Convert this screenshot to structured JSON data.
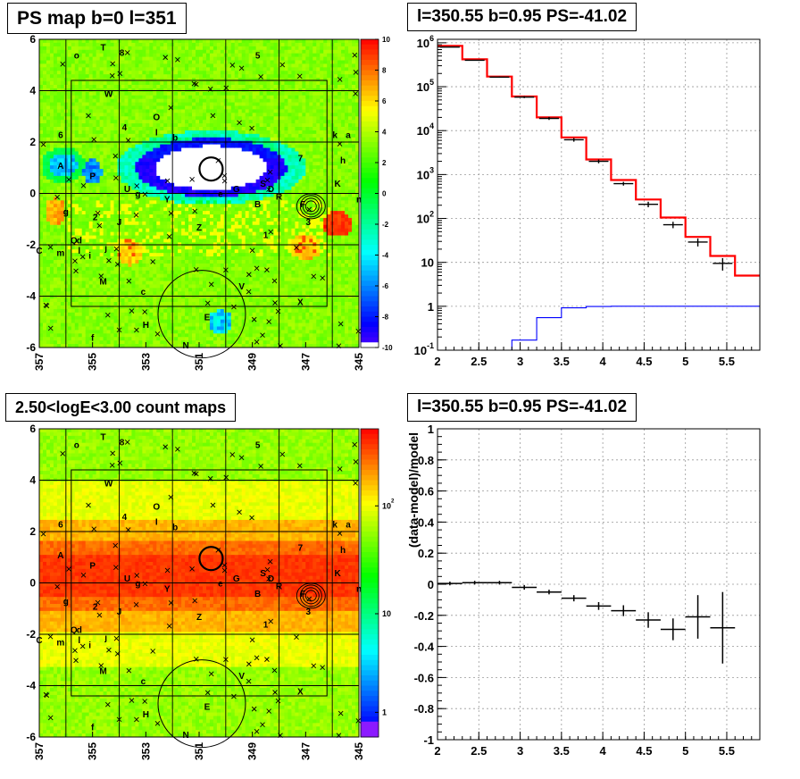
{
  "chart_data": [
    {
      "type": "heatmap",
      "title": "PS map b=0 l=351",
      "x_ticks": [
        "357",
        "355",
        "353",
        "351",
        "349",
        "347",
        "345"
      ],
      "y_ticks": [
        "6",
        "4",
        "2",
        "0",
        "-2",
        "-4",
        "-6"
      ],
      "xlim": [
        357,
        345
      ],
      "ylim": [
        -6,
        6
      ],
      "z_ticks": [
        "10",
        "8",
        "6",
        "4",
        "2",
        "0",
        "-2",
        "-4",
        "-6",
        "-8",
        "-10"
      ],
      "zlim": [
        -10,
        10
      ],
      "labels": [
        {
          "t": "o",
          "l": 355.6,
          "b": 5.4
        },
        {
          "t": "T",
          "l": 354.6,
          "b": 5.7
        },
        {
          "t": "8",
          "l": 353.9,
          "b": 5.5
        },
        {
          "t": "5",
          "l": 348.8,
          "b": 5.4
        },
        {
          "t": "W",
          "l": 354.4,
          "b": 3.9
        },
        {
          "t": "O",
          "l": 352.6,
          "b": 3.0
        },
        {
          "t": "4",
          "l": 353.8,
          "b": 2.6
        },
        {
          "t": "I",
          "l": 352.6,
          "b": 2.4
        },
        {
          "t": "6",
          "l": 356.2,
          "b": 2.3
        },
        {
          "t": "b",
          "l": 351.9,
          "b": 2.2
        },
        {
          "t": "k",
          "l": 345.9,
          "b": 2.3
        },
        {
          "t": "a",
          "l": 345.4,
          "b": 2.3
        },
        {
          "t": "7",
          "l": 347.2,
          "b": 1.4
        },
        {
          "t": "h",
          "l": 345.6,
          "b": 1.3
        },
        {
          "t": "A",
          "l": 356.2,
          "b": 1.1
        },
        {
          "t": "P",
          "l": 355.0,
          "b": 0.7
        },
        {
          "t": "K",
          "l": 345.8,
          "b": 0.4
        },
        {
          "t": "S",
          "l": 348.6,
          "b": 0.4
        },
        {
          "t": "D",
          "l": 348.3,
          "b": 0.2
        },
        {
          "t": "G",
          "l": 349.6,
          "b": 0.2
        },
        {
          "t": "U",
          "l": 353.7,
          "b": 0.2
        },
        {
          "t": "g",
          "l": 353.3,
          "b": 0.0
        },
        {
          "t": "e",
          "l": 350.2,
          "b": 0.0
        },
        {
          "t": "R",
          "l": 348.0,
          "b": -0.1
        },
        {
          "t": "Y",
          "l": 352.2,
          "b": -0.2
        },
        {
          "t": "n",
          "l": 345.0,
          "b": -0.2
        },
        {
          "t": "B",
          "l": 348.8,
          "b": -0.4
        },
        {
          "t": "F",
          "l": 347.1,
          "b": -0.4
        },
        {
          "t": "g",
          "l": 356.0,
          "b": -0.7
        },
        {
          "t": "2",
          "l": 354.9,
          "b": -0.9
        },
        {
          "t": "J",
          "l": 354.0,
          "b": -1.1
        },
        {
          "t": "3",
          "l": 346.9,
          "b": -1.1
        },
        {
          "t": "Z",
          "l": 351.0,
          "b": -1.3
        },
        {
          "t": "1",
          "l": 348.5,
          "b": -1.6
        },
        {
          "t": "Q",
          "l": 355.7,
          "b": -1.8
        },
        {
          "t": "d",
          "l": 355.5,
          "b": -1.8
        },
        {
          "t": "j",
          "l": 354.5,
          "b": -2.1
        },
        {
          "t": "C",
          "l": 357.0,
          "b": -2.2
        },
        {
          "t": "m",
          "l": 356.2,
          "b": -2.3
        },
        {
          "t": "l",
          "l": 355.5,
          "b": -2.2
        },
        {
          "t": "i",
          "l": 355.1,
          "b": -2.4
        },
        {
          "t": "M",
          "l": 354.6,
          "b": -3.4
        },
        {
          "t": "V",
          "l": 349.4,
          "b": -3.6
        },
        {
          "t": "c",
          "l": 353.1,
          "b": -3.8
        },
        {
          "t": "X",
          "l": 347.2,
          "b": -4.2
        },
        {
          "t": "E",
          "l": 350.7,
          "b": -4.8
        },
        {
          "t": "H",
          "l": 353.0,
          "b": -5.1
        },
        {
          "t": "f",
          "l": 355.0,
          "b": -5.6
        },
        {
          "t": "N",
          "l": 351.5,
          "b": -5.9
        }
      ]
    },
    {
      "type": "line",
      "title": "l=350.55 b=0.95 PS=-41.02",
      "x_ticks": [
        "2",
        "2.5",
        "3",
        "3.5",
        "4",
        "4.5",
        "5",
        "5.5"
      ],
      "xlim": [
        2.0,
        5.9
      ],
      "y_scale": "log",
      "y_ticks": [
        "10^6",
        "10^5",
        "10^4",
        "10^3",
        "10^2",
        "10",
        "1",
        "10^-1"
      ],
      "ylim": [
        0.1,
        1200000
      ],
      "bin_edges": [
        2.0,
        2.3,
        2.6,
        2.9,
        3.2,
        3.5,
        3.8,
        4.1,
        4.4,
        4.7,
        5.0,
        5.3,
        5.6,
        5.9
      ],
      "series": [
        {
          "color": "#ff0000",
          "step": [
            850000,
            420000,
            170000,
            60000,
            20000,
            7000,
            2200,
            750,
            270,
            105,
            38,
            14,
            5
          ]
        },
        {
          "color": "#000000",
          "points": [
            [
              2.15,
              800000,
              10000
            ],
            [
              2.45,
              400000,
              8000
            ],
            [
              2.75,
              165000,
              5000
            ],
            [
              3.05,
              58000,
              3000
            ],
            [
              3.35,
              19000,
              1500
            ],
            [
              3.65,
              6200,
              600
            ],
            [
              3.95,
              2000,
              200
            ],
            [
              4.25,
              620,
              60
            ],
            [
              4.55,
              210,
              30
            ],
            [
              4.85,
              72,
              12
            ],
            [
              5.15,
              29,
              6
            ],
            [
              5.45,
              9.5,
              3
            ]
          ]
        },
        {
          "color": "#0000ff",
          "step": [
            0.0001,
            0.0001,
            0.0001,
            0.17,
            0.55,
            0.92,
            0.99,
            1.0,
            1.0,
            1.0,
            1.0,
            1.0,
            1.0
          ]
        }
      ]
    },
    {
      "type": "heatmap",
      "title": "2.50<logE<3.00 count maps",
      "x_ticks": [
        "357",
        "355",
        "353",
        "351",
        "349",
        "347",
        "345"
      ],
      "y_ticks": [
        "6",
        "4",
        "2",
        "0",
        "-2",
        "-4",
        "-6"
      ],
      "xlim": [
        357,
        345
      ],
      "ylim": [
        -6,
        6
      ],
      "z_scale": "log",
      "z_ticks": [
        "10^2",
        "10",
        "1"
      ]
    },
    {
      "type": "scatter",
      "title": "l=350.55 b=0.95 PS=-41.02",
      "ylabel": "(data-model)/model",
      "x_ticks": [
        "2",
        "2.5",
        "3",
        "3.5",
        "4",
        "4.5",
        "5",
        "5.5"
      ],
      "y_ticks": [
        "1",
        "0.8",
        "0.6",
        "0.4",
        "0.2",
        "0",
        "-0.2",
        "-0.4",
        "-0.6",
        "-0.8",
        "-1"
      ],
      "xlim": [
        2.0,
        5.9
      ],
      "ylim": [
        -1,
        1
      ],
      "points": [
        {
          "x": 2.15,
          "y": 0.005,
          "e": 0.012
        },
        {
          "x": 2.45,
          "y": 0.01,
          "e": 0.012
        },
        {
          "x": 2.75,
          "y": 0.01,
          "e": 0.012
        },
        {
          "x": 3.05,
          "y": -0.02,
          "e": 0.015
        },
        {
          "x": 3.35,
          "y": -0.05,
          "e": 0.015
        },
        {
          "x": 3.65,
          "y": -0.09,
          "e": 0.02
        },
        {
          "x": 3.95,
          "y": -0.14,
          "e": 0.025
        },
        {
          "x": 4.25,
          "y": -0.17,
          "e": 0.035
        },
        {
          "x": 4.55,
          "y": -0.23,
          "e": 0.05
        },
        {
          "x": 4.85,
          "y": -0.29,
          "e": 0.07
        },
        {
          "x": 5.15,
          "y": -0.21,
          "e": 0.14
        },
        {
          "x": 5.45,
          "y": -0.28,
          "e": 0.23
        }
      ]
    }
  ]
}
